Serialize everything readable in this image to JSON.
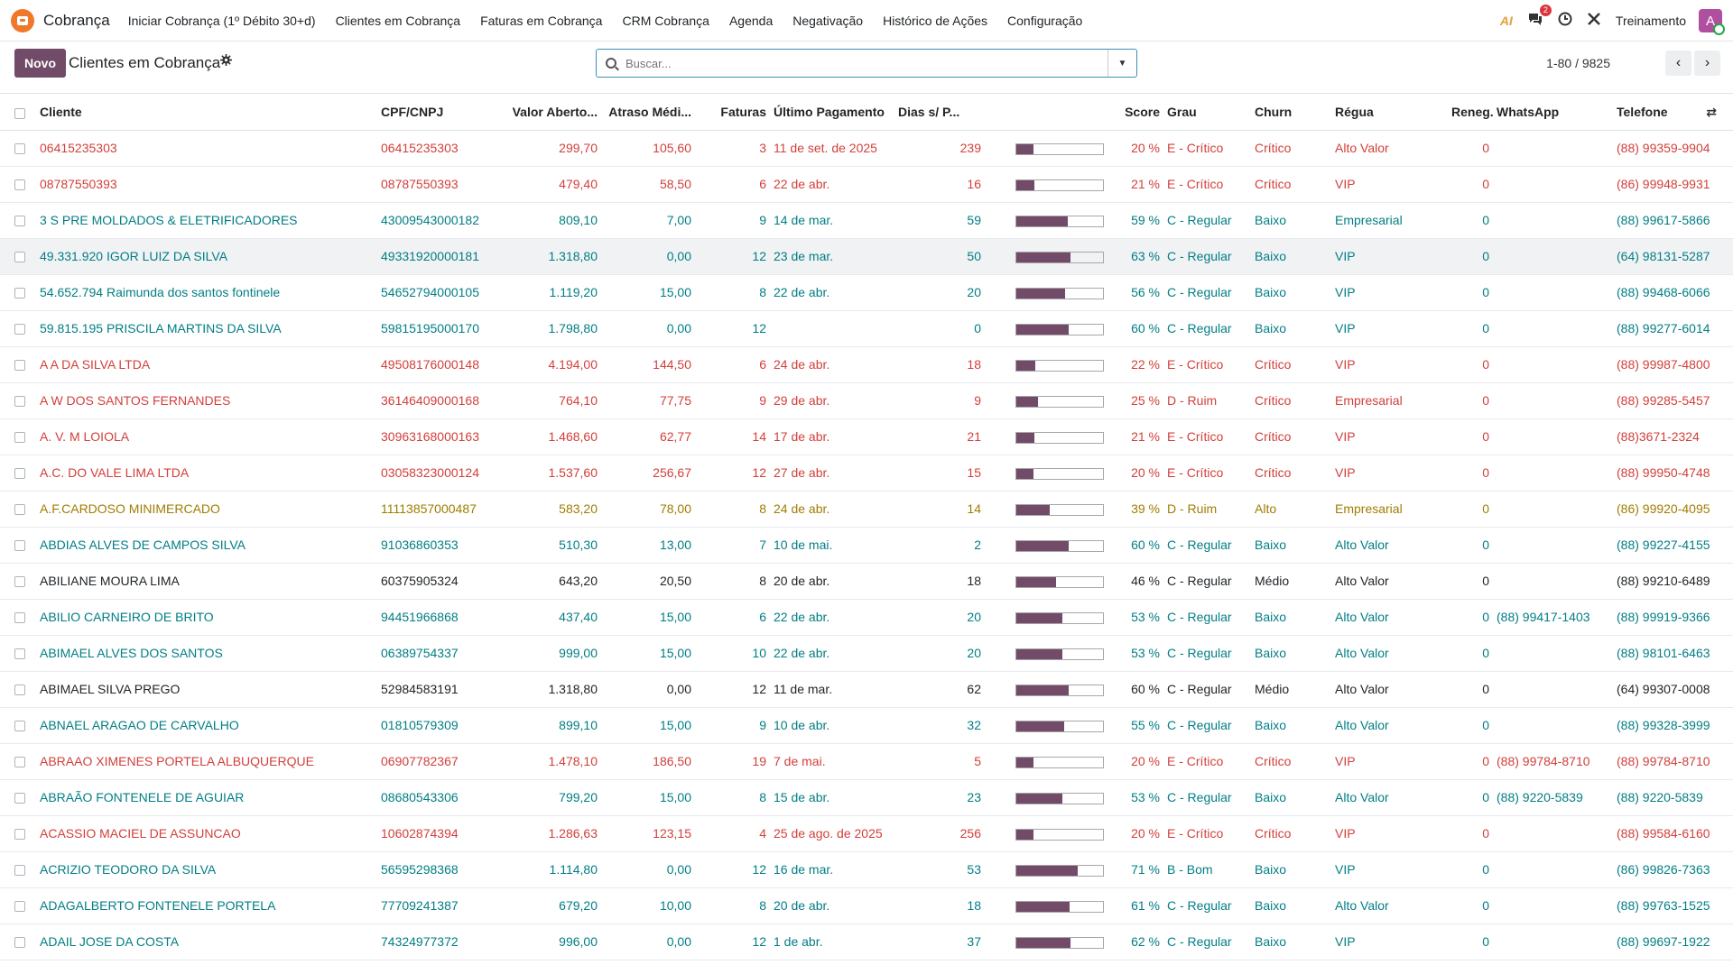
{
  "navbar": {
    "app_name": "Cobrança",
    "menu": [
      "Iniciar Cobrança (1º Débito 30+d)",
      "Clientes em Cobrança",
      "Faturas em Cobrança",
      "CRM Cobrança",
      "Agenda",
      "Negativação",
      "Histórico de Ações",
      "Configuração"
    ],
    "ai_label": "AI",
    "messages_badge": "2",
    "company": "Treinamento",
    "avatar_letter": "A"
  },
  "control": {
    "new_button": "Novo",
    "title": "Clientes em Cobrança",
    "search_placeholder": "Buscar...",
    "pager": "1-80 / 9825"
  },
  "table": {
    "columns": [
      "Cliente",
      "CPF/CNPJ",
      "Valor Aberto...",
      "Atraso Médi...",
      "Faturas",
      "Último Pagamento",
      "Dias s/ P...",
      "",
      "Score",
      "Grau",
      "Churn",
      "Régua",
      "Reneg.",
      "WhatsApp",
      "Telefone"
    ],
    "rows": [
      {
        "cliente": "06415235303",
        "cpf": "06415235303",
        "valor": "299,70",
        "atraso": "105,60",
        "faturas": "3",
        "ultimo": "11 de set. de 2025",
        "dias": "239",
        "score_pct": 20,
        "score": "20 %",
        "grau": "E - Crítico",
        "churn": "Crítico",
        "regua": "Alto Valor",
        "reneg": "0",
        "whatsapp": "",
        "telefone": "(88) 99359-9904",
        "tone": "red"
      },
      {
        "cliente": "08787550393",
        "cpf": "08787550393",
        "valor": "479,40",
        "atraso": "58,50",
        "faturas": "6",
        "ultimo": "22 de abr.",
        "dias": "16",
        "score_pct": 21,
        "score": "21 %",
        "grau": "E - Crítico",
        "churn": "Crítico",
        "regua": "VIP",
        "reneg": "0",
        "whatsapp": "",
        "telefone": "(86) 99948-9931",
        "tone": "red"
      },
      {
        "cliente": "3 S PRE MOLDADOS & ELETRIFICADORES",
        "cpf": "43009543000182",
        "valor": "809,10",
        "atraso": "7,00",
        "faturas": "9",
        "ultimo": "14 de mar.",
        "dias": "59",
        "score_pct": 59,
        "score": "59 %",
        "grau": "C - Regular",
        "churn": "Baixo",
        "regua": "Empresarial",
        "reneg": "0",
        "whatsapp": "",
        "telefone": "(88) 99617-5866",
        "tone": "teal"
      },
      {
        "cliente": "49.331.920 IGOR LUIZ DA SILVA",
        "cpf": "49331920000181",
        "valor": "1.318,80",
        "atraso": "0,00",
        "faturas": "12",
        "ultimo": "23 de mar.",
        "dias": "50",
        "score_pct": 63,
        "score": "63 %",
        "grau": "C - Regular",
        "churn": "Baixo",
        "regua": "VIP",
        "reneg": "0",
        "whatsapp": "",
        "telefone": "(64) 98131-5287",
        "tone": "teal"
      },
      {
        "cliente": "54.652.794 Raimunda dos santos fontinele",
        "cpf": "54652794000105",
        "valor": "1.119,20",
        "atraso": "15,00",
        "faturas": "8",
        "ultimo": "22 de abr.",
        "dias": "20",
        "score_pct": 56,
        "score": "56 %",
        "grau": "C - Regular",
        "churn": "Baixo",
        "regua": "VIP",
        "reneg": "0",
        "whatsapp": "",
        "telefone": "(88) 99468-6066",
        "tone": "teal"
      },
      {
        "cliente": "59.815.195 PRISCILA MARTINS DA SILVA",
        "cpf": "59815195000170",
        "valor": "1.798,80",
        "atraso": "0,00",
        "faturas": "12",
        "ultimo": "",
        "dias": "0",
        "score_pct": 60,
        "score": "60 %",
        "grau": "C - Regular",
        "churn": "Baixo",
        "regua": "VIP",
        "reneg": "0",
        "whatsapp": "",
        "telefone": "(88) 99277-6014",
        "tone": "teal"
      },
      {
        "cliente": "A A DA SILVA LTDA",
        "cpf": "49508176000148",
        "valor": "4.194,00",
        "atraso": "144,50",
        "faturas": "6",
        "ultimo": "24 de abr.",
        "dias": "18",
        "score_pct": 22,
        "score": "22 %",
        "grau": "E - Crítico",
        "churn": "Crítico",
        "regua": "VIP",
        "reneg": "0",
        "whatsapp": "",
        "telefone": "(88) 99987-4800",
        "tone": "red"
      },
      {
        "cliente": "A W DOS SANTOS FERNANDES",
        "cpf": "36146409000168",
        "valor": "764,10",
        "atraso": "77,75",
        "faturas": "9",
        "ultimo": "29 de abr.",
        "dias": "9",
        "score_pct": 25,
        "score": "25 %",
        "grau": "D - Ruim",
        "churn": "Crítico",
        "regua": "Empresarial",
        "reneg": "0",
        "whatsapp": "",
        "telefone": "(88) 99285-5457",
        "tone": "red"
      },
      {
        "cliente": "A. V. M LOIOLA",
        "cpf": "30963168000163",
        "valor": "1.468,60",
        "atraso": "62,77",
        "faturas": "14",
        "ultimo": "17 de abr.",
        "dias": "21",
        "score_pct": 21,
        "score": "21 %",
        "grau": "E - Crítico",
        "churn": "Crítico",
        "regua": "VIP",
        "reneg": "0",
        "whatsapp": "",
        "telefone": "(88)3671-2324",
        "tone": "red"
      },
      {
        "cliente": "A.C. DO VALE LIMA LTDA",
        "cpf": "03058323000124",
        "valor": "1.537,60",
        "atraso": "256,67",
        "faturas": "12",
        "ultimo": "27 de abr.",
        "dias": "15",
        "score_pct": 20,
        "score": "20 %",
        "grau": "E - Crítico",
        "churn": "Crítico",
        "regua": "VIP",
        "reneg": "0",
        "whatsapp": "",
        "telefone": "(88) 99950-4748",
        "tone": "red"
      },
      {
        "cliente": "A.F.CARDOSO MINIMERCADO",
        "cpf": "11113857000487",
        "valor": "583,20",
        "atraso": "78,00",
        "faturas": "8",
        "ultimo": "24 de abr.",
        "dias": "14",
        "score_pct": 39,
        "score": "39 %",
        "grau": "D - Ruim",
        "churn": "Alto",
        "regua": "Empresarial",
        "reneg": "0",
        "whatsapp": "",
        "telefone": "(86) 99920-4095",
        "tone": "amber"
      },
      {
        "cliente": "ABDIAS ALVES DE CAMPOS SILVA",
        "cpf": "91036860353",
        "valor": "510,30",
        "atraso": "13,00",
        "faturas": "7",
        "ultimo": "10 de mai.",
        "dias": "2",
        "score_pct": 60,
        "score": "60 %",
        "grau": "C - Regular",
        "churn": "Baixo",
        "regua": "Alto Valor",
        "reneg": "0",
        "whatsapp": "",
        "telefone": "(88) 99227-4155",
        "tone": "teal"
      },
      {
        "cliente": "ABILIANE MOURA LIMA",
        "cpf": "60375905324",
        "valor": "643,20",
        "atraso": "20,50",
        "faturas": "8",
        "ultimo": "20 de abr.",
        "dias": "18",
        "score_pct": 46,
        "score": "46 %",
        "grau": "C - Regular",
        "churn": "Médio",
        "regua": "Alto Valor",
        "reneg": "0",
        "whatsapp": "",
        "telefone": "(88) 99210-6489",
        "tone": "dark"
      },
      {
        "cliente": "ABILIO CARNEIRO DE BRITO",
        "cpf": "94451966868",
        "valor": "437,40",
        "atraso": "15,00",
        "faturas": "6",
        "ultimo": "22 de abr.",
        "dias": "20",
        "score_pct": 53,
        "score": "53 %",
        "grau": "C - Regular",
        "churn": "Baixo",
        "regua": "Alto Valor",
        "reneg": "0",
        "whatsapp": "(88) 99417-1403",
        "telefone": "(88) 99919-9366",
        "tone": "teal"
      },
      {
        "cliente": "ABIMAEL ALVES DOS SANTOS",
        "cpf": "06389754337",
        "valor": "999,00",
        "atraso": "15,00",
        "faturas": "10",
        "ultimo": "22 de abr.",
        "dias": "20",
        "score_pct": 53,
        "score": "53 %",
        "grau": "C - Regular",
        "churn": "Baixo",
        "regua": "Alto Valor",
        "reneg": "0",
        "whatsapp": "",
        "telefone": "(88) 98101-6463",
        "tone": "teal"
      },
      {
        "cliente": "ABIMAEL SILVA PREGO",
        "cpf": "52984583191",
        "valor": "1.318,80",
        "atraso": "0,00",
        "faturas": "12",
        "ultimo": "11 de mar.",
        "dias": "62",
        "score_pct": 60,
        "score": "60 %",
        "grau": "C - Regular",
        "churn": "Médio",
        "regua": "Alto Valor",
        "reneg": "0",
        "whatsapp": "",
        "telefone": "(64) 99307-0008",
        "tone": "dark"
      },
      {
        "cliente": "ABNAEL ARAGAO DE CARVALHO",
        "cpf": "01810579309",
        "valor": "899,10",
        "atraso": "15,00",
        "faturas": "9",
        "ultimo": "10 de abr.",
        "dias": "32",
        "score_pct": 55,
        "score": "55 %",
        "grau": "C - Regular",
        "churn": "Baixo",
        "regua": "Alto Valor",
        "reneg": "0",
        "whatsapp": "",
        "telefone": "(88) 99328-3999",
        "tone": "teal"
      },
      {
        "cliente": "ABRAAO XIMENES PORTELA ALBUQUERQUE",
        "cpf": "06907782367",
        "valor": "1.478,10",
        "atraso": "186,50",
        "faturas": "19",
        "ultimo": "7 de mai.",
        "dias": "5",
        "score_pct": 20,
        "score": "20 %",
        "grau": "E - Crítico",
        "churn": "Crítico",
        "regua": "VIP",
        "reneg": "0",
        "whatsapp": "(88) 99784-8710",
        "telefone": "(88) 99784-8710",
        "tone": "red"
      },
      {
        "cliente": "ABRAÃO FONTENELE DE AGUIAR",
        "cpf": "08680543306",
        "valor": "799,20",
        "atraso": "15,00",
        "faturas": "8",
        "ultimo": "15 de abr.",
        "dias": "23",
        "score_pct": 53,
        "score": "53 %",
        "grau": "C - Regular",
        "churn": "Baixo",
        "regua": "Alto Valor",
        "reneg": "0",
        "whatsapp": "(88) 9220-5839",
        "telefone": "(88) 9220-5839",
        "tone": "teal"
      },
      {
        "cliente": "ACASSIO MACIEL DE ASSUNCAO",
        "cpf": "10602874394",
        "valor": "1.286,63",
        "atraso": "123,15",
        "faturas": "4",
        "ultimo": "25 de ago. de 2025",
        "dias": "256",
        "score_pct": 20,
        "score": "20 %",
        "grau": "E - Crítico",
        "churn": "Crítico",
        "regua": "VIP",
        "reneg": "0",
        "whatsapp": "",
        "telefone": "(88) 99584-6160",
        "tone": "red"
      },
      {
        "cliente": "ACRIZIO TEODORO DA SILVA",
        "cpf": "56595298368",
        "valor": "1.114,80",
        "atraso": "0,00",
        "faturas": "12",
        "ultimo": "16 de mar.",
        "dias": "53",
        "score_pct": 71,
        "score": "71 %",
        "grau": "B - Bom",
        "churn": "Baixo",
        "regua": "VIP",
        "reneg": "0",
        "whatsapp": "",
        "telefone": "(86) 99826-7363",
        "tone": "teal"
      },
      {
        "cliente": "ADAGALBERTO FONTENELE PORTELA",
        "cpf": "77709241387",
        "valor": "679,20",
        "atraso": "10,00",
        "faturas": "8",
        "ultimo": "20 de abr.",
        "dias": "18",
        "score_pct": 61,
        "score": "61 %",
        "grau": "C - Regular",
        "churn": "Baixo",
        "regua": "Alto Valor",
        "reneg": "0",
        "whatsapp": "",
        "telefone": "(88) 99763-1525",
        "tone": "teal"
      },
      {
        "cliente": "ADAIL JOSE DA COSTA",
        "cpf": "74324977372",
        "valor": "996,00",
        "atraso": "0,00",
        "faturas": "12",
        "ultimo": "1 de abr.",
        "dias": "37",
        "score_pct": 62,
        "score": "62 %",
        "grau": "C - Regular",
        "churn": "Baixo",
        "regua": "VIP",
        "reneg": "0",
        "whatsapp": "",
        "telefone": "(88) 99697-1922",
        "tone": "teal"
      }
    ],
    "highlight_row": 3
  },
  "colors": {
    "primary": "#714b67",
    "red": "#d23f3a",
    "teal": "#017e84",
    "amber": "#a17d00",
    "brand_icon": "#f0782b"
  },
  "icons": [
    "app-icon",
    "ai-icon",
    "chat-icon",
    "clock-icon",
    "tools-icon",
    "gear-icon",
    "search-icon",
    "dropdown-icon",
    "chevron-left-icon",
    "chevron-right-icon",
    "column-settings-icon"
  ]
}
